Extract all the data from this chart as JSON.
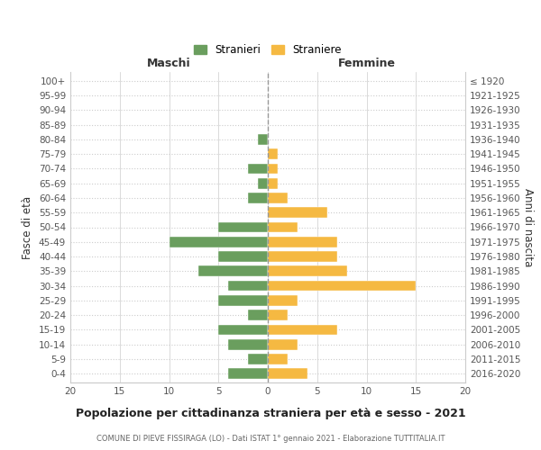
{
  "age_groups": [
    "0-4",
    "5-9",
    "10-14",
    "15-19",
    "20-24",
    "25-29",
    "30-34",
    "35-39",
    "40-44",
    "45-49",
    "50-54",
    "55-59",
    "60-64",
    "65-69",
    "70-74",
    "75-79",
    "80-84",
    "85-89",
    "90-94",
    "95-99",
    "100+"
  ],
  "birth_years": [
    "2016-2020",
    "2011-2015",
    "2006-2010",
    "2001-2005",
    "1996-2000",
    "1991-1995",
    "1986-1990",
    "1981-1985",
    "1976-1980",
    "1971-1975",
    "1966-1970",
    "1961-1965",
    "1956-1960",
    "1951-1955",
    "1946-1950",
    "1941-1945",
    "1936-1940",
    "1931-1935",
    "1926-1930",
    "1921-1925",
    "≤ 1920"
  ],
  "maschi": [
    4,
    2,
    4,
    5,
    2,
    5,
    4,
    7,
    5,
    10,
    5,
    0,
    2,
    1,
    2,
    0,
    1,
    0,
    0,
    0,
    0
  ],
  "femmine": [
    4,
    2,
    3,
    7,
    2,
    3,
    15,
    8,
    7,
    7,
    3,
    6,
    2,
    1,
    1,
    1,
    0,
    0,
    0,
    0,
    0
  ],
  "color_maschi": "#6a9e5e",
  "color_femmine": "#f5b942",
  "title": "Popolazione per cittadinanza straniera per età e sesso - 2021",
  "subtitle": "COMUNE DI PIEVE FISSIRAGA (LO) - Dati ISTAT 1° gennaio 2021 - Elaborazione TUTTITALIA.IT",
  "xlabel_left": "Maschi",
  "xlabel_right": "Femmine",
  "ylabel_left": "Fasce di età",
  "ylabel_right": "Anni di nascita",
  "legend_maschi": "Stranieri",
  "legend_femmine": "Straniere",
  "xlim": 20,
  "background_color": "#ffffff",
  "grid_color": "#cccccc"
}
